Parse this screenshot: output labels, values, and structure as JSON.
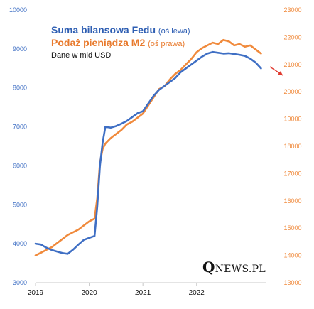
{
  "chart_data": {
    "type": "line",
    "legend": {
      "line1_title": "Suma bilansowa Fedu",
      "line1_note": "(oś lewa)",
      "line2_title": "Podaż pieniądza M2",
      "line2_note": "(oś prawa)",
      "unit_note": "Dane w mld USD"
    },
    "brand": {
      "first": "Q",
      "rest": "NEWS.PL"
    },
    "x_ticks": [
      2019,
      2020,
      2021,
      2022
    ],
    "xlim": [
      2019.0,
      2023.3
    ],
    "left_axis": {
      "ylim": [
        3000,
        10000
      ],
      "ticks": [
        3000,
        4000,
        5000,
        6000,
        7000,
        8000,
        9000,
        10000
      ]
    },
    "right_axis": {
      "ylim": [
        13000,
        23000
      ],
      "ticks": [
        13000,
        14000,
        15000,
        16000,
        17000,
        18000,
        19000,
        20000,
        21000,
        22000,
        23000
      ]
    },
    "colors": {
      "fed": "#3f6fc4",
      "m2": "#f08a3c",
      "left_ticks": "#3f6fc4",
      "right_ticks": "#f08a3c",
      "arrow": "#e03a2f"
    },
    "series": [
      {
        "axis": "left",
        "x": [
          2019.0,
          2019.1,
          2019.2,
          2019.3,
          2019.4,
          2019.5,
          2019.6,
          2019.7,
          2019.8,
          2019.9,
          2020.0,
          2020.1,
          2020.15,
          2020.2,
          2020.25,
          2020.3,
          2020.4,
          2020.5,
          2020.6,
          2020.7,
          2020.8,
          2020.9,
          2021.0,
          2021.1,
          2021.2,
          2021.3,
          2021.4,
          2021.5,
          2021.6,
          2021.7,
          2021.8,
          2021.9,
          2022.0,
          2022.1,
          2022.2,
          2022.3,
          2022.4,
          2022.5,
          2022.6,
          2022.7,
          2022.8,
          2022.9,
          2023.0,
          2023.1,
          2023.2
        ],
        "y": [
          4000,
          3980,
          3900,
          3840,
          3800,
          3760,
          3740,
          3850,
          3980,
          4100,
          4150,
          4200,
          4950,
          6000,
          6600,
          7000,
          6980,
          7020,
          7080,
          7150,
          7250,
          7350,
          7400,
          7600,
          7800,
          7950,
          8050,
          8150,
          8250,
          8400,
          8500,
          8600,
          8700,
          8800,
          8880,
          8920,
          8900,
          8880,
          8890,
          8870,
          8850,
          8820,
          8750,
          8650,
          8500
        ]
      },
      {
        "axis": "right",
        "x": [
          2019.0,
          2019.1,
          2019.2,
          2019.3,
          2019.4,
          2019.5,
          2019.6,
          2019.7,
          2019.8,
          2019.9,
          2020.0,
          2020.1,
          2020.15,
          2020.2,
          2020.25,
          2020.3,
          2020.4,
          2020.5,
          2020.6,
          2020.7,
          2020.8,
          2020.9,
          2021.0,
          2021.1,
          2021.2,
          2021.3,
          2021.4,
          2021.5,
          2021.6,
          2021.7,
          2021.8,
          2021.9,
          2022.0,
          2022.1,
          2022.2,
          2022.3,
          2022.4,
          2022.5,
          2022.6,
          2022.7,
          2022.8,
          2022.9,
          2023.0,
          2023.1,
          2023.2
        ],
        "y": [
          14000,
          14100,
          14200,
          14300,
          14450,
          14600,
          14750,
          14850,
          14950,
          15100,
          15250,
          15350,
          16100,
          17400,
          17900,
          18100,
          18300,
          18450,
          18600,
          18800,
          18900,
          19050,
          19200,
          19500,
          19800,
          20100,
          20200,
          20450,
          20650,
          20800,
          21000,
          21200,
          21450,
          21600,
          21700,
          21800,
          21750,
          21900,
          21850,
          21700,
          21750,
          21650,
          21700,
          21550,
          21400
        ]
      }
    ],
    "annotation": {
      "type": "arrow",
      "description": "down-right arrow near right axis around 21000"
    },
    "grid": false
  }
}
